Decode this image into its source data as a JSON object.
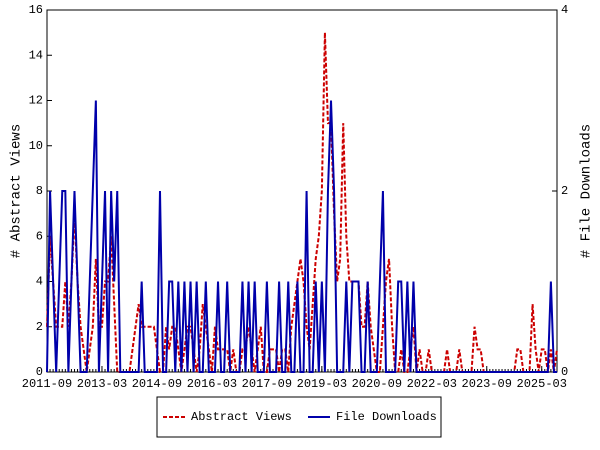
{
  "chart_data": {
    "type": "line",
    "ylabel": "# Abstract Views",
    "y2label": "# File Downloads",
    "x": [
      "2011-09",
      "2011-10",
      "2011-11",
      "2011-12",
      "2012-01",
      "2012-02",
      "2012-03",
      "2012-04",
      "2012-05",
      "2012-06",
      "2012-07",
      "2012-08",
      "2012-09",
      "2012-10",
      "2012-11",
      "2012-12",
      "2013-01",
      "2013-02",
      "2013-03",
      "2013-04",
      "2013-05",
      "2013-06",
      "2013-07",
      "2013-08",
      "2013-09",
      "2013-10",
      "2013-11",
      "2013-12",
      "2014-01",
      "2014-02",
      "2014-03",
      "2014-04",
      "2014-05",
      "2014-06",
      "2014-07",
      "2014-08",
      "2014-09",
      "2014-10",
      "2014-11",
      "2014-12",
      "2015-01",
      "2015-02",
      "2015-03",
      "2015-04",
      "2015-05",
      "2015-06",
      "2015-07",
      "2015-08",
      "2015-09",
      "2015-10",
      "2015-11",
      "2015-12",
      "2016-01",
      "2016-02",
      "2016-03",
      "2016-04",
      "2016-05",
      "2016-06",
      "2016-07",
      "2016-08",
      "2016-09",
      "2016-10",
      "2016-11",
      "2016-12",
      "2017-01",
      "2017-02",
      "2017-03",
      "2017-04",
      "2017-05",
      "2017-06",
      "2017-07",
      "2017-08",
      "2017-09",
      "2017-10",
      "2017-11",
      "2017-12",
      "2018-01",
      "2018-02",
      "2018-03",
      "2018-04",
      "2018-05",
      "2018-06",
      "2018-07",
      "2018-08",
      "2018-09",
      "2018-10",
      "2018-11",
      "2018-12",
      "2019-01",
      "2019-02",
      "2019-03",
      "2019-04",
      "2019-05",
      "2019-06",
      "2019-07",
      "2019-08",
      "2019-09",
      "2019-10",
      "2019-11",
      "2019-12",
      "2020-01",
      "2020-02",
      "2020-03",
      "2020-04",
      "2020-05",
      "2020-06",
      "2020-07",
      "2020-08",
      "2020-09",
      "2020-10",
      "2020-11",
      "2020-12",
      "2021-01",
      "2021-02",
      "2021-03",
      "2021-04",
      "2021-05",
      "2021-06",
      "2021-07",
      "2021-08",
      "2021-09",
      "2021-10",
      "2021-11",
      "2021-12",
      "2022-01",
      "2022-02",
      "2022-03",
      "2022-04",
      "2022-05",
      "2022-06",
      "2022-07",
      "2022-08",
      "2022-09",
      "2022-10",
      "2022-11",
      "2022-12",
      "2023-01",
      "2023-02",
      "2023-03",
      "2023-04",
      "2023-05",
      "2023-06",
      "2023-07",
      "2023-08",
      "2023-09",
      "2023-10",
      "2023-11",
      "2023-12",
      "2024-01",
      "2024-02",
      "2024-03",
      "2024-04",
      "2024-05",
      "2024-06",
      "2024-07",
      "2024-08",
      "2024-09",
      "2024-10",
      "2024-11",
      "2024-12",
      "2025-01",
      "2025-02",
      "2025-03",
      "2025-04",
      "2025-05",
      "2025-06",
      "2025-07",
      "2025-08"
    ],
    "xticks": [
      "2011-09",
      "2013-03",
      "2014-09",
      "2016-03",
      "2017-09",
      "2019-03",
      "2020-09",
      "2022-03",
      "2023-09",
      "2025-03"
    ],
    "ylim": [
      0,
      16
    ],
    "yticks": [
      0,
      2,
      4,
      6,
      8,
      10,
      12,
      14,
      16
    ],
    "y2lim": [
      0,
      4
    ],
    "y2ticks": [
      0,
      2,
      4
    ],
    "legend": "bottom",
    "series": [
      {
        "name": "Abstract Views",
        "color": "#cc0000",
        "dash": true,
        "values": [
          2,
          6,
          4,
          2,
          2,
          2,
          4,
          2,
          4,
          7,
          4,
          2,
          1,
          0,
          1,
          2,
          5,
          2,
          2,
          4,
          4,
          6,
          3,
          0,
          0,
          0,
          0,
          0,
          1,
          2,
          3,
          2,
          2,
          2,
          2,
          2,
          1,
          0,
          0,
          2,
          1,
          2,
          2,
          1,
          0,
          1,
          2,
          2,
          1,
          0,
          1,
          3,
          2,
          1,
          0,
          2,
          1,
          1,
          1,
          1,
          0,
          1,
          0,
          0,
          1,
          1,
          2,
          1,
          0,
          1,
          2,
          0,
          0,
          1,
          1,
          1,
          0,
          1,
          1,
          0,
          2,
          3,
          4,
          5,
          4,
          2,
          1,
          3,
          5,
          6,
          8,
          15,
          11,
          11,
          7,
          4,
          5,
          11,
          6,
          4,
          4,
          4,
          4,
          2,
          2,
          4,
          2,
          1,
          0,
          0,
          2,
          4,
          5,
          2,
          0,
          0,
          1,
          0,
          0,
          1,
          2,
          0,
          1,
          0,
          0,
          1,
          0,
          0,
          0,
          0,
          0,
          1,
          0,
          0,
          0,
          1,
          0,
          0,
          0,
          0,
          2,
          1,
          1,
          0,
          0,
          0,
          0,
          0,
          0,
          0,
          0,
          0,
          0,
          0,
          1,
          1,
          0,
          0,
          0,
          3,
          1,
          0,
          1,
          1,
          0,
          1,
          0,
          1
        ]
      },
      {
        "name": "File Downloads",
        "color": "#0000aa",
        "axis": "y2",
        "values": [
          0,
          2,
          1,
          0,
          1,
          2,
          2,
          0,
          1,
          2,
          1,
          0,
          0,
          0,
          1,
          2,
          3,
          0,
          1,
          2,
          0,
          2,
          1,
          2,
          0,
          0,
          0,
          0,
          0,
          0,
          0,
          1,
          0,
          0,
          0,
          0,
          0,
          2,
          0,
          0,
          1,
          1,
          0,
          1,
          0,
          1,
          0,
          1,
          0,
          1,
          0,
          0,
          1,
          0,
          0,
          0,
          1,
          0,
          0,
          1,
          0,
          0,
          0,
          0,
          1,
          0,
          1,
          0,
          1,
          0,
          0,
          0,
          1,
          0,
          0,
          0,
          1,
          0,
          0,
          1,
          0,
          0,
          1,
          0,
          0,
          2,
          0,
          0,
          1,
          0,
          1,
          0,
          2,
          3,
          2,
          0,
          0,
          0,
          1,
          0,
          1,
          1,
          1,
          0,
          0,
          1,
          0,
          0,
          0,
          1,
          2,
          0,
          0,
          0,
          0,
          1,
          1,
          0,
          1,
          0,
          1,
          0,
          0,
          0,
          0,
          0,
          0,
          0,
          0,
          0,
          0,
          0,
          0,
          0,
          0,
          0,
          0,
          0,
          0,
          0,
          0,
          0,
          0,
          0,
          0,
          0,
          0,
          0,
          0,
          0,
          0,
          0,
          0,
          0,
          0,
          0,
          0,
          0,
          0,
          0,
          0,
          0,
          0,
          0,
          0,
          1,
          0,
          0
        ]
      }
    ]
  }
}
